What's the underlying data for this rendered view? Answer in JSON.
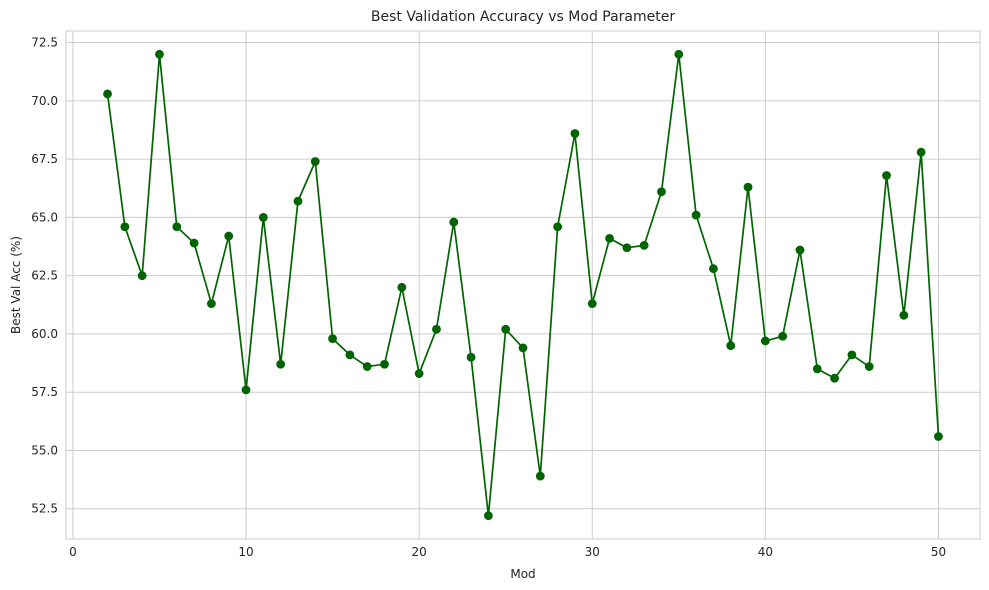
{
  "chart_data": {
    "type": "line",
    "title": "Best Validation Accuracy vs Mod Parameter",
    "xlabel": "Mod",
    "ylabel": "Best Val Acc (%)",
    "xlim": [
      -0.4,
      52.4
    ],
    "ylim": [
      51.2,
      73.0
    ],
    "xticks": [
      0,
      10,
      20,
      30,
      40,
      50
    ],
    "yticks": [
      52.5,
      55.0,
      57.5,
      60.0,
      62.5,
      65.0,
      67.5,
      70.0,
      72.5
    ],
    "xtick_labels": [
      "0",
      "10",
      "20",
      "30",
      "40",
      "50"
    ],
    "ytick_labels": [
      "52.5",
      "55.0",
      "57.5",
      "60.0",
      "62.5",
      "65.0",
      "67.5",
      "70.0",
      "72.5"
    ],
    "grid": true,
    "series": [
      {
        "color": "#006400",
        "marker": "circle",
        "x": [
          2,
          3,
          4,
          5,
          6,
          7,
          8,
          9,
          10,
          11,
          12,
          13,
          14,
          15,
          16,
          17,
          18,
          19,
          20,
          21,
          22,
          23,
          24,
          25,
          26,
          27,
          28,
          29,
          30,
          31,
          32,
          33,
          34,
          35,
          36,
          37,
          38,
          39,
          40,
          41,
          42,
          43,
          44,
          45,
          46,
          47,
          48,
          49,
          50
        ],
        "y": [
          70.3,
          64.6,
          62.5,
          72.0,
          64.6,
          63.9,
          61.3,
          64.2,
          57.6,
          65.0,
          58.7,
          65.7,
          67.4,
          59.8,
          59.1,
          58.6,
          58.7,
          62.0,
          58.3,
          60.2,
          64.8,
          59.0,
          52.2,
          60.2,
          59.4,
          53.9,
          64.6,
          68.6,
          61.3,
          64.1,
          63.7,
          63.8,
          66.1,
          72.0,
          65.1,
          62.8,
          59.5,
          66.3,
          59.7,
          59.9,
          63.6,
          58.5,
          58.1,
          59.1,
          58.6,
          66.8,
          60.8,
          67.8,
          55.6
        ]
      }
    ]
  }
}
